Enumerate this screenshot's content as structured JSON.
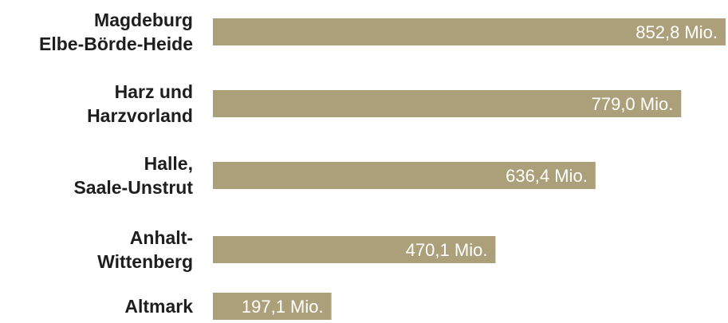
{
  "chart_data": {
    "type": "bar",
    "orientation": "horizontal",
    "categories": [
      [
        "Magdeburg",
        "Elbe-Börde-Heide"
      ],
      [
        "Harz und",
        "Harzvorland"
      ],
      [
        "Halle,",
        "Saale-Unstrut"
      ],
      [
        "Anhalt-",
        "Wittenberg"
      ],
      [
        "Altmark"
      ]
    ],
    "values": [
      852.8,
      779.0,
      636.4,
      470.1,
      197.1
    ],
    "value_labels": [
      "852,8 Mio.",
      "779,0 Mio.",
      "636,4 Mio.",
      "470,1 Mio.",
      "197,1 Mio."
    ],
    "bar_color": "#aca07a",
    "label_color": "#1e1e1e",
    "value_label_color": "#ffffff",
    "xlim": [
      0,
      852.8
    ],
    "grid": false,
    "legend": "none"
  }
}
